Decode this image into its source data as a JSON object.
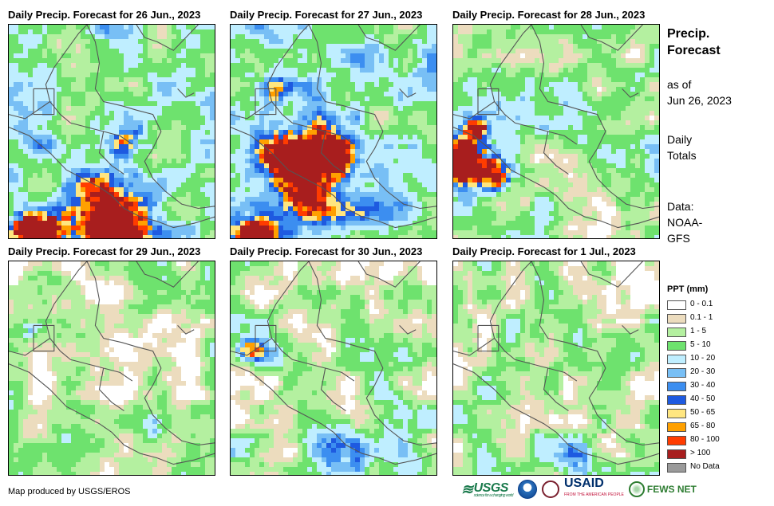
{
  "panels": [
    {
      "title": "Daily Precip. Forecast for 26 Jun., 2023",
      "variant": 0
    },
    {
      "title": "Daily Precip. Forecast for 27 Jun., 2023",
      "variant": 1
    },
    {
      "title": "Daily Precip. Forecast for 28 Jun., 2023",
      "variant": 2
    },
    {
      "title": "Daily Precip. Forecast for 29 Jun., 2023",
      "variant": 3
    },
    {
      "title": "Daily Precip. Forecast for 30 Jun., 2023",
      "variant": 4
    },
    {
      "title": "Daily Precip. Forecast for 1 Jul., 2023",
      "variant": 5
    }
  ],
  "side": {
    "title_line1": "Precip.",
    "title_line2": "Forecast",
    "asof_line1": "as of",
    "asof_line2": "Jun 26, 2023",
    "daily_line1": "Daily",
    "daily_line2": "Totals",
    "data_line1": "Data:",
    "data_line2": "NOAA-",
    "data_line3": "GFS"
  },
  "legend": {
    "title": "PPT (mm)",
    "items": [
      {
        "label": "0 - 0.1",
        "color": "#ffffff"
      },
      {
        "label": "0.1 - 1",
        "color": "#ecdcbe"
      },
      {
        "label": "1 - 5",
        "color": "#b4f0a0"
      },
      {
        "label": "5 - 10",
        "color": "#6ee26e"
      },
      {
        "label": "10 - 20",
        "color": "#bfeeff"
      },
      {
        "label": "20 - 30",
        "color": "#78bff5"
      },
      {
        "label": "30 - 40",
        "color": "#3c8ef0"
      },
      {
        "label": "40 - 50",
        "color": "#1e5ae0"
      },
      {
        "label": "50 - 65",
        "color": "#ffe680"
      },
      {
        "label": "65 - 80",
        "color": "#ffa000"
      },
      {
        "label": "80 - 100",
        "color": "#ff3c00"
      },
      {
        "label": "> 100",
        "color": "#a81e1e"
      },
      {
        "label": "No Data",
        "color": "#9a9a9a"
      }
    ]
  },
  "credit": "Map produced by USGS/EROS",
  "logos": {
    "usgs": "USGS",
    "usgs_tagline": "science for a changing world",
    "usaid": "USAID",
    "usaid_tagline": "FROM THE AMERICAN PEOPLE",
    "fews": "FEWS NET"
  }
}
